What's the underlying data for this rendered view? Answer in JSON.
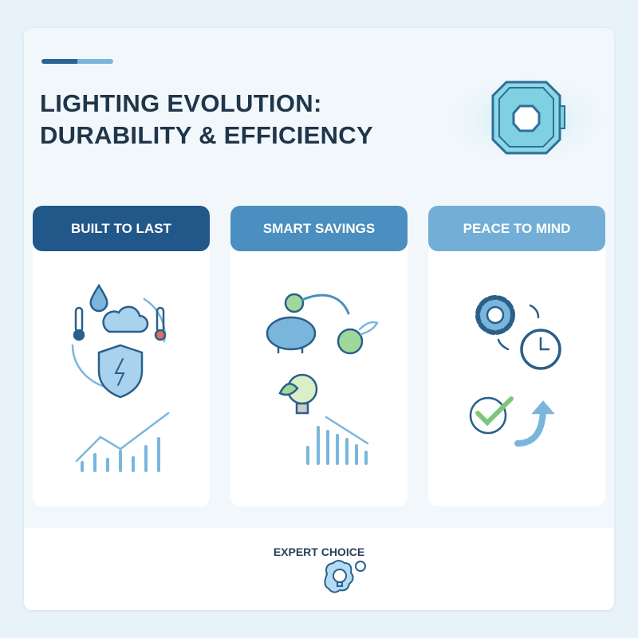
{
  "header": {
    "title_line1": "LIGHTING EVOLUTION:",
    "title_line2": "DURABILITY & EFFICIENCY",
    "hero_icon": "octagon-light-icon"
  },
  "columns": [
    {
      "label": "BUILT TO LAST",
      "color": "#22578a",
      "icons": [
        "thermometer-icon",
        "water-drop-icon",
        "cloud-icon",
        "shield-bolt-icon",
        "growth-chart-icon"
      ]
    },
    {
      "label": "SMART SAVINGS",
      "color": "#4a8fbf",
      "icons": [
        "piggy-bank-icon",
        "dollar-coin-icon",
        "eco-bulb-icon",
        "declining-chart-icon"
      ]
    },
    {
      "label": "PEACE TO MIND",
      "color": "#72aed6",
      "icons": [
        "gear-icon",
        "clock-icon",
        "checkmark-icon",
        "arrow-up-icon"
      ]
    }
  ],
  "footer": {
    "label": "EXPERT CHOICE",
    "icon": "idea-bulb-icon"
  }
}
